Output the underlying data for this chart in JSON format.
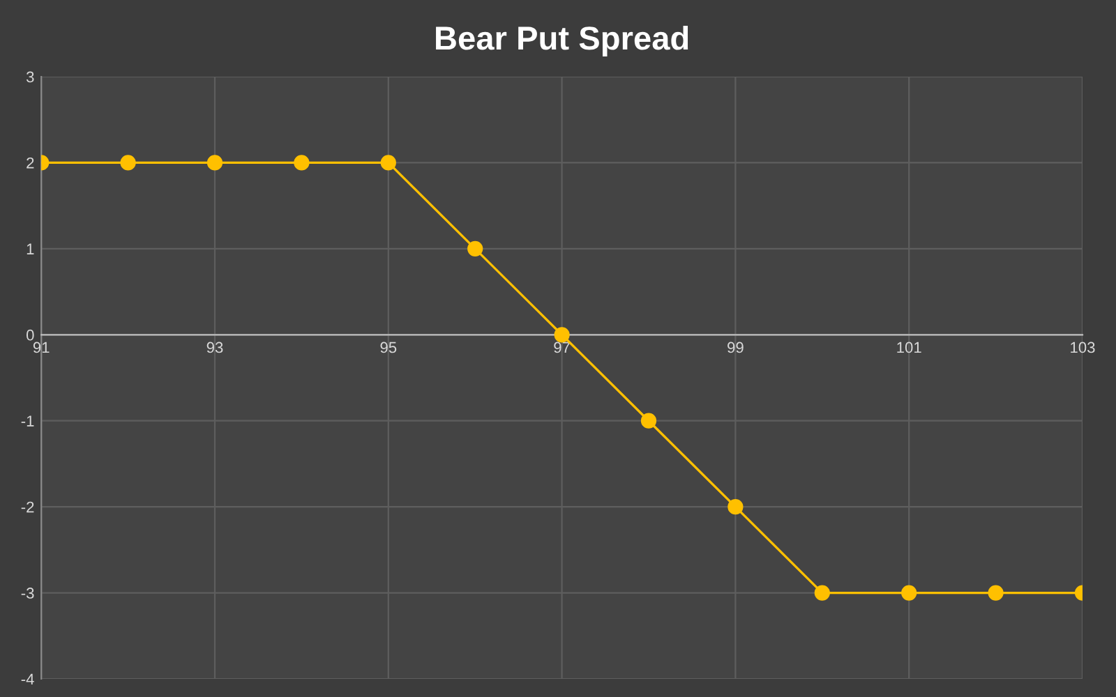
{
  "chart_data": {
    "type": "line",
    "title": "Bear Put Spread",
    "x": [
      91,
      92,
      93,
      94,
      95,
      96,
      97,
      98,
      99,
      100,
      101,
      102,
      103
    ],
    "series": [
      {
        "color": "#ffc000",
        "values": [
          2,
          2,
          2,
          2,
          2,
          1,
          0,
          -1,
          -2,
          -3,
          -3,
          -3,
          -3
        ]
      }
    ],
    "xlim": [
      91,
      103
    ],
    "xticks": [
      91,
      93,
      95,
      97,
      99,
      101,
      103
    ],
    "ylim": [
      -4,
      3
    ],
    "yticks": [
      -4,
      -3,
      -2,
      -1,
      0,
      1,
      2,
      3
    ],
    "grid": true,
    "marker": "circle",
    "line_style": "solid",
    "legend": false
  }
}
